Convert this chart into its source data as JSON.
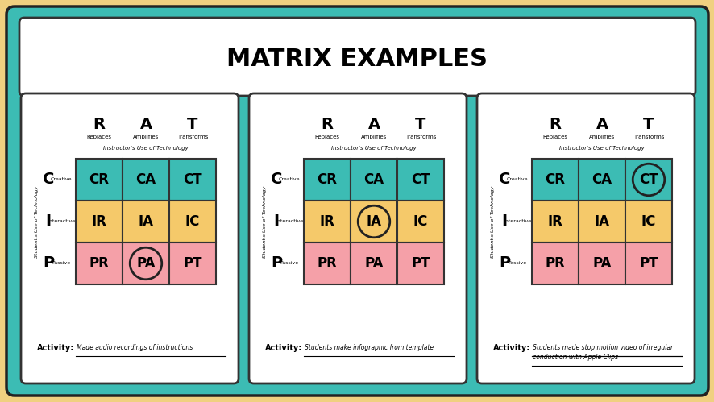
{
  "title": "MATRIX EXAMPLES",
  "bg_outer": "#F0D080",
  "bg_teal": "#3CBCB4",
  "bg_white": "#FFFFFF",
  "cell_colors": {
    "CR": "#3CBCB4",
    "CA": "#3CBCB4",
    "CT": "#3CBCB4",
    "IR": "#F5C96A",
    "IA": "#F5C96A",
    "IC": "#F5C96A",
    "PR": "#F5A0A8",
    "PA": "#F5A0A8",
    "PT": "#F5A0A8"
  },
  "cell_labels": [
    "CR",
    "CA",
    "CT",
    "IR",
    "IA",
    "IC",
    "PR",
    "PA",
    "PT"
  ],
  "row_labels": [
    "C",
    "I",
    "P"
  ],
  "row_sublabels": [
    "Creative",
    "Interactive",
    "Passive"
  ],
  "col_labels": [
    "R",
    "A",
    "T"
  ],
  "col_sublabels": [
    "Replaces",
    "Amplifies",
    "Transforms"
  ],
  "col_axis_label": "Instructor's Use of Technology",
  "row_axis_label": "Student's Use of Technology",
  "panels": [
    {
      "circled": "PA",
      "activity": "Made audio recordings of instructions"
    },
    {
      "circled": "IA",
      "activity": "Students make infographic from template"
    },
    {
      "circled": "CT",
      "activity": "Students made stop motion video of irregular conduction with Apple Clips"
    }
  ]
}
